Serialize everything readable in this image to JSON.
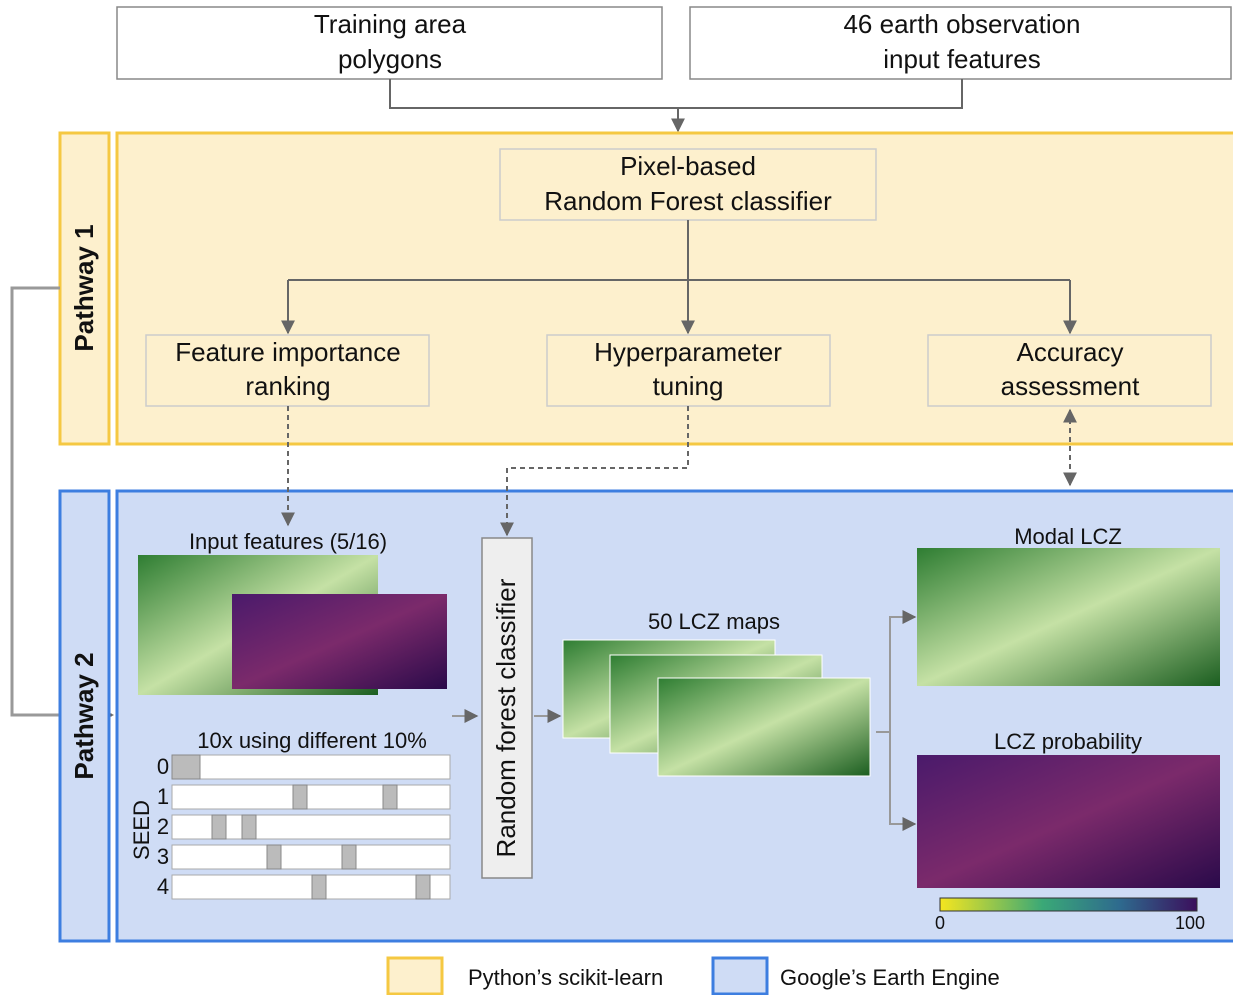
{
  "inputs": {
    "training": {
      "lines": [
        "Training area",
        "polygons"
      ]
    },
    "features": {
      "lines": [
        "46 earth observation",
        "input features"
      ]
    }
  },
  "pathway1": {
    "label": "Pathway 1",
    "classifier": {
      "lines": [
        "Pixel-based",
        "Random Forest classifier"
      ]
    },
    "feature_importance": {
      "lines": [
        "Feature importance",
        "ranking"
      ]
    },
    "tuning": {
      "lines": [
        "Hyperparameter",
        "tuning"
      ]
    },
    "accuracy": {
      "lines": [
        "Accuracy",
        "assessment"
      ]
    }
  },
  "pathway2": {
    "label": "Pathway 2",
    "input_features": "Input features (5/16)",
    "seeds": {
      "title": "10x using different 10%",
      "axis": "SEED",
      "labels": [
        "0",
        "1",
        "2",
        "3",
        "4"
      ]
    },
    "classifier": "Random forest classifier",
    "maps": "50 LCZ maps",
    "modal": "Modal LCZ",
    "probability": "LCZ probability",
    "colorbar": [
      "0",
      "100"
    ]
  },
  "legend": [
    "Python’s scikit-learn",
    "Google’s Earth Engine"
  ]
}
